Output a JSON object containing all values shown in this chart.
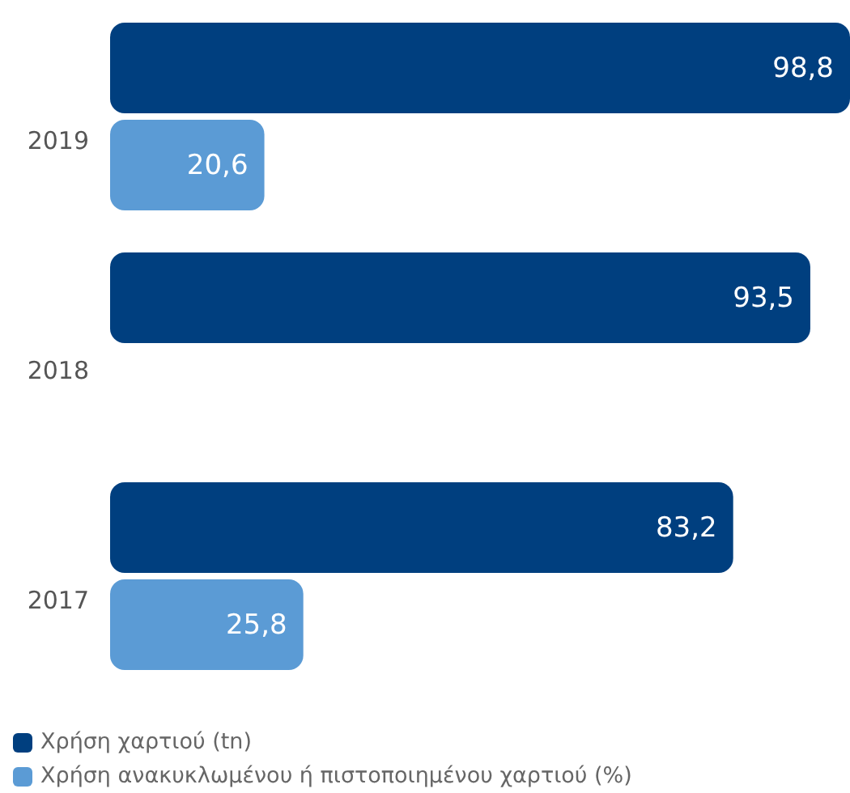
{
  "chart_data": {
    "type": "bar",
    "orientation": "horizontal",
    "categories": [
      "2019",
      "2018",
      "2017"
    ],
    "series": [
      {
        "name": "Χρήση χαρτιού (tn)",
        "color": "#003f7f",
        "values": [
          98.8,
          93.5,
          83.2
        ],
        "value_labels": [
          "98,8",
          "93,5",
          "83,2"
        ]
      },
      {
        "name": "Χρήση ανακυκλωμένου ή πιστοποιημένου χαρτιού (%)",
        "color": "#5b9bd5",
        "values": [
          20.6,
          null,
          25.8
        ],
        "value_labels": [
          "20,6",
          null,
          "25,8"
        ]
      }
    ],
    "legend": "bottom"
  }
}
